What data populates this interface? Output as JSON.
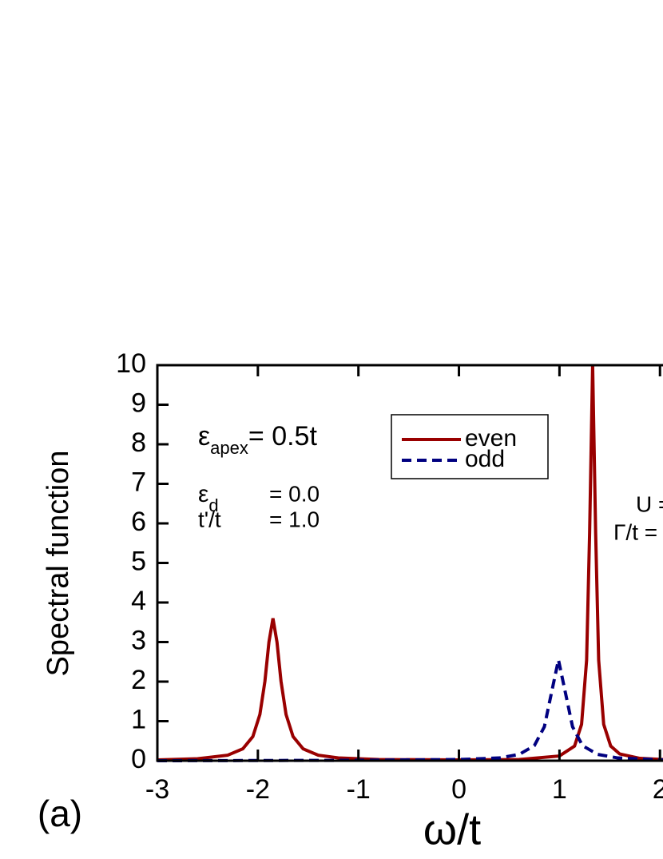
{
  "chart_data": {
    "type": "line",
    "panel_label": "(a)",
    "xlabel": "ω/t",
    "ylabel": "Spectral function",
    "xlim": [
      -3,
      2.03
    ],
    "ylim": [
      0,
      10
    ],
    "xticks": [
      -3,
      -2,
      -1,
      0,
      1,
      2
    ],
    "yticks": [
      0,
      1,
      2,
      3,
      4,
      5,
      6,
      7,
      8,
      9,
      10
    ],
    "legend": "upper center",
    "series": [
      {
        "name": "even",
        "color": "#990000",
        "dash": false,
        "x": [
          -3,
          -2.6,
          -2.3,
          -2.15,
          -2.05,
          -1.98,
          -1.93,
          -1.89,
          -1.85,
          -1.81,
          -1.77,
          -1.72,
          -1.65,
          -1.55,
          -1.4,
          -1.2,
          -0.8,
          0,
          0.6,
          1.0,
          1.15,
          1.22,
          1.27,
          1.3,
          1.33,
          1.36,
          1.39,
          1.44,
          1.51,
          1.6,
          1.8,
          2.03
        ],
        "values": [
          0.02,
          0.05,
          0.14,
          0.3,
          0.61,
          1.17,
          2.01,
          3.0,
          3.6,
          3.0,
          2.01,
          1.17,
          0.61,
          0.3,
          0.14,
          0.07,
          0.03,
          0.02,
          0.03,
          0.12,
          0.37,
          0.92,
          2.54,
          5.76,
          10,
          5.76,
          2.54,
          0.92,
          0.37,
          0.17,
          0.06,
          0.03
        ]
      },
      {
        "name": "odd",
        "color": "#000080",
        "dash": true,
        "x": [
          -3,
          -1,
          0,
          0.4,
          0.6,
          0.75,
          0.85,
          0.92,
          0.99,
          1.06,
          1.13,
          1.23,
          1.38,
          1.58,
          2.03
        ],
        "values": [
          0.0,
          0.01,
          0.03,
          0.07,
          0.16,
          0.38,
          0.86,
          1.71,
          2.55,
          1.71,
          0.86,
          0.38,
          0.16,
          0.07,
          0.02
        ]
      }
    ],
    "annotations": [
      {
        "symbol": "ε",
        "subscript": "apex",
        "text": "= 0.5t"
      },
      {
        "symbol": "ε",
        "subscript": "d",
        "text": "= 0.0"
      },
      {
        "label": "t'/t",
        "text": "= 1.0"
      },
      {
        "text": "U ="
      },
      {
        "text": "Γ/t ="
      }
    ]
  }
}
